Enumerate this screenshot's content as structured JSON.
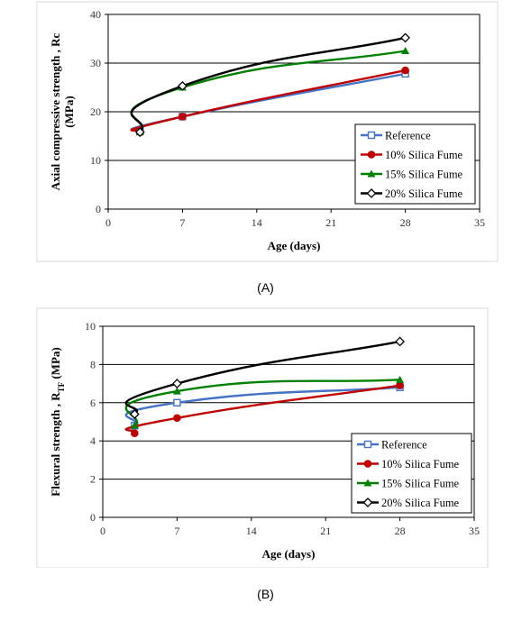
{
  "chart_data": [
    {
      "type": "line",
      "xlabel": "Age (days)",
      "ylabel": "Axial compressive strength , Rc",
      "ylabel2": "(MPa)",
      "xlim": [
        0,
        35
      ],
      "ylim": [
        0,
        40
      ],
      "xticks": [
        "0",
        "7",
        "14",
        "21",
        "28",
        "35"
      ],
      "yticks": [
        "0",
        "10",
        "20",
        "30",
        "40"
      ],
      "grid": "horizontal",
      "legend": "bottom-right",
      "series": [
        {
          "name": "Reference",
          "color": "#4472C4",
          "marker": "square-open",
          "x": [
            3,
            7,
            28
          ],
          "y": [
            16,
            19,
            27.8
          ]
        },
        {
          "name": "10% Silica Fume",
          "color": "#C00000",
          "marker": "circle",
          "x": [
            3,
            7,
            28
          ],
          "y": [
            15.8,
            19,
            28.5
          ]
        },
        {
          "name": "15% Silica Fume",
          "color": "#008000",
          "marker": "triangle",
          "x": [
            3,
            7,
            28
          ],
          "y": [
            15.8,
            25,
            32.5
          ]
        },
        {
          "name": "20% Silica Fume",
          "color": "#000000",
          "marker": "diamond-open",
          "x": [
            3,
            7,
            28
          ],
          "y": [
            15.8,
            25.3,
            35.2
          ]
        }
      ],
      "caption": "(A)"
    },
    {
      "type": "line",
      "xlabel": "Age (days)",
      "ylabel": "Flexural strength , R",
      "ylabel_sub": "TF",
      "ylabel_unit": " (MPa)",
      "xlim": [
        0,
        35
      ],
      "ylim": [
        0,
        10
      ],
      "xticks": [
        "0",
        "7",
        "14",
        "21",
        "28",
        "35"
      ],
      "yticks": [
        "0",
        "2",
        "4",
        "6",
        "8",
        "10"
      ],
      "grid": "horizontal",
      "legend": "bottom-right",
      "series": [
        {
          "name": "Reference",
          "color": "#4472C4",
          "marker": "square-open",
          "x": [
            3,
            7,
            28
          ],
          "y": [
            4.8,
            6,
            6.8
          ]
        },
        {
          "name": "10% Silica Fume",
          "color": "#C00000",
          "marker": "circle",
          "x": [
            3,
            7,
            28
          ],
          "y": [
            4.4,
            5.2,
            6.9
          ]
        },
        {
          "name": "15% Silica Fume",
          "color": "#008000",
          "marker": "triangle",
          "x": [
            3,
            7,
            28
          ],
          "y": [
            4.8,
            6.6,
            7.2
          ]
        },
        {
          "name": "20% Silica Fume",
          "color": "#000000",
          "marker": "diamond-open",
          "x": [
            3,
            7,
            28
          ],
          "y": [
            5.4,
            7,
            9.2
          ]
        }
      ],
      "caption": "(B)"
    }
  ]
}
